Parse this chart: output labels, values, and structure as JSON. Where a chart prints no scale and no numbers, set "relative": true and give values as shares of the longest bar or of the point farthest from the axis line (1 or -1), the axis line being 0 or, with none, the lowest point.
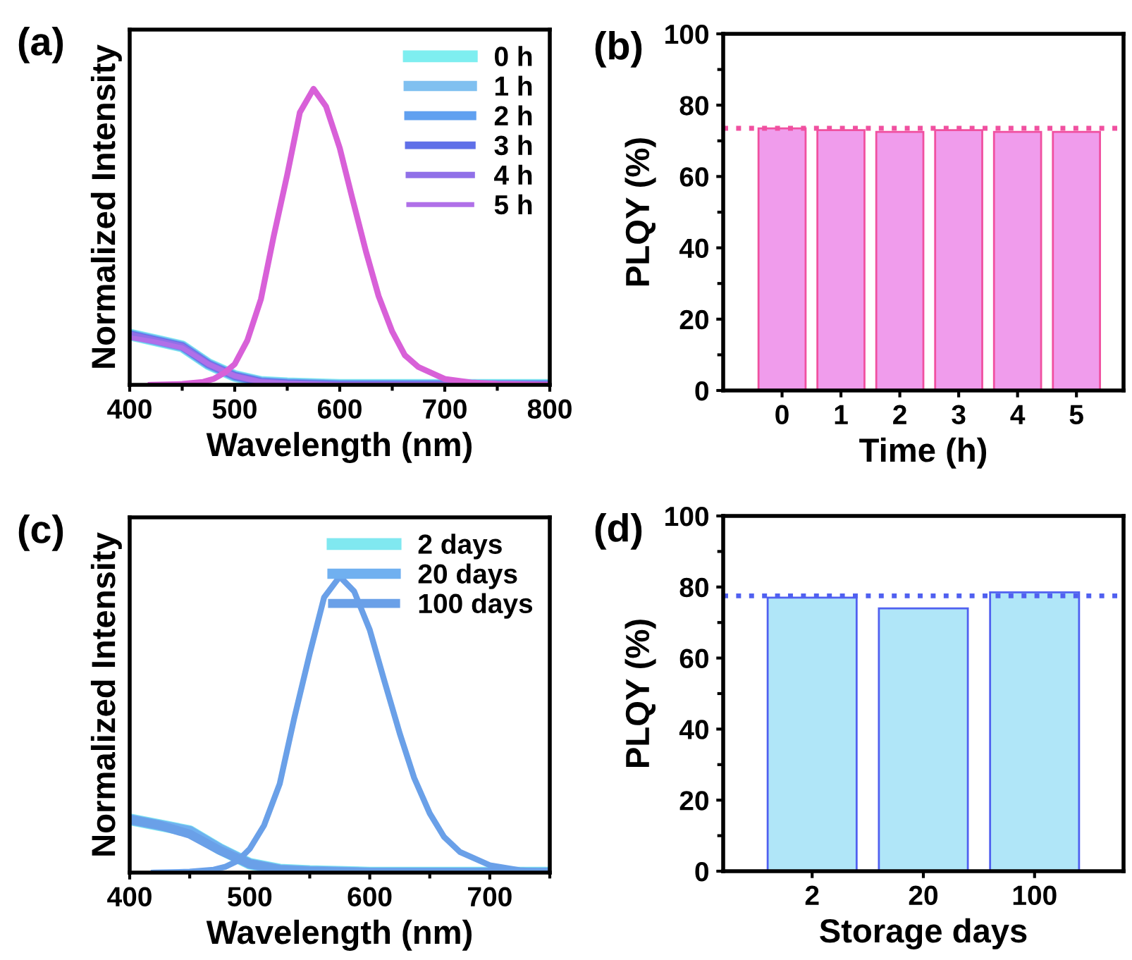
{
  "chart_data": [
    {
      "type": "line",
      "relative": true,
      "xlabel": "Wavelength (nm)",
      "ylabel": "Normalized Intensity",
      "annotations": [
        "(a)"
      ],
      "xlim": [
        400,
        800
      ],
      "xticks": [
        400,
        500,
        600,
        700,
        800
      ],
      "legend": "top right",
      "grid": false,
      "tick_labels": "x",
      "series": [
        {
          "name": "0 h",
          "color": "#7eeef0",
          "x": [
            400,
            425,
            450,
            475,
            500,
            525,
            550,
            600,
            700,
            800
          ],
          "values": [
            0.17,
            0.15,
            0.13,
            0.07,
            0.03,
            0.01,
            0.005,
            0,
            0,
            0
          ]
        },
        {
          "name": "1 h",
          "color": "#80c0f0",
          "x": [
            400,
            425,
            450,
            475,
            500,
            525,
            550,
            600,
            700,
            800
          ],
          "values": [
            0.17,
            0.15,
            0.13,
            0.07,
            0.03,
            0.01,
            0.005,
            0,
            0,
            0
          ]
        },
        {
          "name": "2 h",
          "color": "#60a0f0",
          "x": [
            400,
            425,
            450,
            475,
            500,
            525,
            550,
            600,
            700,
            800
          ],
          "values": [
            0.17,
            0.15,
            0.13,
            0.07,
            0.03,
            0.01,
            0.005,
            0,
            0,
            0
          ]
        },
        {
          "name": "3 h",
          "color": "#6070e8",
          "x": [
            400,
            425,
            450,
            475,
            500,
            525,
            550,
            600,
            700,
            800
          ],
          "values": [
            0.17,
            0.15,
            0.13,
            0.07,
            0.03,
            0.01,
            0.005,
            0,
            0,
            0
          ]
        },
        {
          "name": "4 h",
          "color": "#9070e8",
          "x": [
            400,
            425,
            450,
            475,
            500,
            525,
            550,
            600,
            700,
            800
          ],
          "values": [
            0.17,
            0.15,
            0.13,
            0.07,
            0.03,
            0.01,
            0.005,
            0,
            0,
            0
          ]
        },
        {
          "name": "5 h",
          "color": "#b070e8",
          "x": [
            400,
            425,
            450,
            475,
            500,
            525,
            550,
            600,
            700,
            800
          ],
          "values": [
            0.16,
            0.145,
            0.125,
            0.07,
            0.03,
            0.01,
            0.005,
            0,
            0,
            0
          ]
        },
        {
          "color": "#d860d8",
          "x": [
            420,
            450,
            470,
            480,
            490,
            500,
            512,
            525,
            537,
            550,
            562,
            575,
            587,
            600,
            612,
            625,
            637,
            650,
            662,
            675,
            700,
            725,
            750,
            800
          ],
          "values": [
            0,
            0.003,
            0.01,
            0.02,
            0.04,
            0.07,
            0.15,
            0.29,
            0.5,
            0.71,
            0.92,
            1,
            0.94,
            0.8,
            0.63,
            0.45,
            0.3,
            0.18,
            0.1,
            0.06,
            0.02,
            0.008,
            0.003,
            0
          ]
        }
      ]
    },
    {
      "type": "bar",
      "categories": [
        "0",
        "1",
        "2",
        "3",
        "4",
        "5"
      ],
      "values": [
        73.5,
        73,
        72.5,
        73,
        72.5,
        72.5
      ],
      "color": "#f09cec",
      "xlabel": "Time (h)",
      "ylabel": "PLQY (%)",
      "annotations": [
        "(b)"
      ],
      "ylim": [
        0,
        100
      ],
      "yticks": [
        0,
        20,
        40,
        60,
        80,
        100
      ],
      "grid": false,
      "ref_lines": [
        {
          "axis": "y",
          "value": 73.5,
          "color": "#f050a0",
          "line_style": "dotted"
        }
      ]
    },
    {
      "type": "line",
      "relative": true,
      "xlabel": "Wavelength (nm)",
      "ylabel": "Normalized Intensity",
      "annotations": [
        "(c)"
      ],
      "xlim": [
        400,
        750
      ],
      "xticks": [
        400,
        500,
        600,
        700
      ],
      "legend": "top right",
      "grid": false,
      "tick_labels": "x",
      "series": [
        {
          "name": "2 days",
          "color": "#80e8f0",
          "x": [
            400,
            425,
            450,
            475,
            500,
            525,
            550,
            600,
            700,
            750
          ],
          "values": [
            0.18,
            0.16,
            0.14,
            0.08,
            0.03,
            0.01,
            0.005,
            0,
            0,
            0
          ]
        },
        {
          "name": "20 days",
          "color": "#70b0f0",
          "x": [
            400,
            425,
            450,
            475,
            500,
            525,
            550,
            600,
            700,
            750
          ],
          "values": [
            0.18,
            0.16,
            0.14,
            0.08,
            0.03,
            0.01,
            0.005,
            0,
            0,
            0
          ]
        },
        {
          "name": "100 days",
          "color": "#6aa0e8",
          "x": [
            400,
            425,
            450,
            475,
            500,
            525,
            550,
            600,
            700,
            750
          ],
          "values": [
            0.18,
            0.16,
            0.13,
            0.075,
            0.03,
            0.01,
            0.005,
            0,
            0,
            0
          ]
        },
        {
          "color": "#6aa0e8",
          "x": [
            420,
            450,
            470,
            480,
            490,
            500,
            512,
            525,
            537,
            550,
            562,
            575,
            587,
            600,
            612,
            625,
            637,
            650,
            662,
            675,
            700,
            725,
            750
          ],
          "values": [
            0,
            0.003,
            0.01,
            0.02,
            0.04,
            0.08,
            0.16,
            0.3,
            0.52,
            0.74,
            0.93,
            1,
            0.95,
            0.82,
            0.65,
            0.47,
            0.32,
            0.2,
            0.12,
            0.07,
            0.025,
            0.008,
            0.002
          ]
        }
      ]
    },
    {
      "type": "bar",
      "categories": [
        "2",
        "20",
        "100"
      ],
      "values": [
        77,
        74,
        78.5
      ],
      "color": "#b0e6f8",
      "xlabel": "Storage days",
      "ylabel": "PLQY (%)",
      "annotations": [
        "(d)"
      ],
      "ylim": [
        0,
        100
      ],
      "yticks": [
        0,
        20,
        40,
        60,
        80,
        100
      ],
      "grid": false,
      "ref_lines": [
        {
          "axis": "y",
          "value": 77.5,
          "color": "#5060f0",
          "line_style": "dotted"
        }
      ]
    }
  ]
}
